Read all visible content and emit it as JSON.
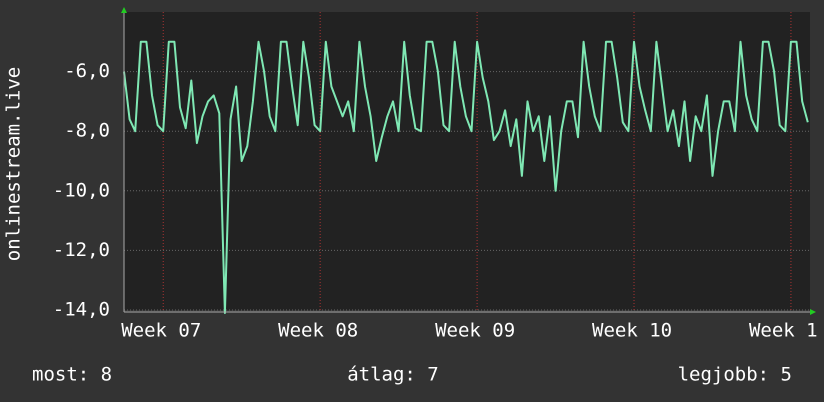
{
  "chart_data": {
    "type": "line",
    "y_label": "onlinestream.live",
    "x": [
      0,
      0.25,
      0.5,
      0.75,
      1,
      1.25,
      1.5,
      1.75,
      2,
      2.25,
      2.5,
      2.75,
      3,
      3.25,
      3.5,
      3.75,
      4,
      4.25,
      4.5,
      4.75,
      5,
      5.25,
      5.5,
      5.75,
      6,
      6.25,
      6.5,
      6.75,
      7,
      7.25,
      7.5,
      7.75,
      8,
      8.25,
      8.5,
      8.75,
      9,
      9.25,
      9.5,
      9.75,
      10,
      10.25,
      10.5,
      10.75,
      11,
      11.25,
      11.5,
      11.75,
      12,
      12.25,
      12.5,
      12.75,
      13,
      13.25,
      13.5,
      13.75,
      14,
      14.25,
      14.5,
      14.75,
      15,
      15.25,
      15.5,
      15.75,
      16,
      16.25,
      16.5,
      16.75,
      17,
      17.25,
      17.5,
      17.75,
      18,
      18.25,
      18.5,
      18.75,
      19,
      19.25,
      19.5,
      19.75,
      20,
      20.25,
      20.5,
      20.75,
      21,
      21.25,
      21.5,
      21.75,
      22,
      22.25,
      22.5,
      22.75,
      23,
      23.25,
      23.5,
      23.75,
      24,
      24.25,
      24.5,
      24.75,
      25,
      25.25,
      25.5,
      25.75,
      26,
      26.25,
      26.5,
      26.75,
      27,
      27.25,
      27.5,
      27.75,
      28,
      28.25,
      28.5,
      28.75,
      29,
      29.25,
      29.5,
      29.75,
      30,
      30.25,
      30.5
    ],
    "series": [
      {
        "color": "#7fe8b4",
        "values": [
          -6.0,
          -7.6,
          -8.0,
          -5.0,
          -5.0,
          -6.8,
          -7.8,
          -8.0,
          -5.0,
          -5.0,
          -7.2,
          -7.9,
          -6.3,
          -8.4,
          -7.5,
          -7.0,
          -6.8,
          -7.4,
          -14.1,
          -7.6,
          -6.5,
          -9.0,
          -8.5,
          -7.0,
          -5.0,
          -6.0,
          -7.5,
          -8.0,
          -5.0,
          -5.0,
          -6.5,
          -7.8,
          -5.0,
          -6.2,
          -7.8,
          -8.0,
          -5.0,
          -6.5,
          -7.0,
          -7.5,
          -7.0,
          -8.0,
          -5.0,
          -6.5,
          -7.5,
          -9.0,
          -8.2,
          -7.5,
          -7.0,
          -8.0,
          -5.0,
          -6.8,
          -7.9,
          -8.0,
          -5.0,
          -5.0,
          -6.0,
          -7.8,
          -8.0,
          -5.0,
          -6.5,
          -7.5,
          -8.0,
          -5.0,
          -6.2,
          -7.0,
          -8.3,
          -8.0,
          -7.3,
          -8.5,
          -7.6,
          -9.5,
          -7.0,
          -8.0,
          -7.5,
          -9.0,
          -7.5,
          -10.0,
          -8.0,
          -7.0,
          -7.0,
          -8.2,
          -5.0,
          -6.5,
          -7.5,
          -8.0,
          -5.0,
          -5.0,
          -6.2,
          -7.7,
          -8.0,
          -5.0,
          -6.5,
          -7.3,
          -8.0,
          -5.0,
          -6.5,
          -8.0,
          -7.3,
          -8.5,
          -7.0,
          -9.0,
          -7.5,
          -8.0,
          -6.8,
          -9.5,
          -8.0,
          -7.0,
          -7.0,
          -8.0,
          -5.0,
          -6.8,
          -7.6,
          -8.0,
          -5.0,
          -5.0,
          -6.0,
          -7.8,
          -8.0,
          -5.0,
          -5.0,
          -7.0,
          -7.7
        ]
      }
    ],
    "xlim": [
      0,
      30.6
    ],
    "xticks": [
      {
        "value": 1.75,
        "label": "Week 07"
      },
      {
        "value": 8.75,
        "label": "Week 08"
      },
      {
        "value": 15.75,
        "label": "Week 09"
      },
      {
        "value": 22.75,
        "label": "Week 10"
      },
      {
        "value": 29.75,
        "label": "Week 1"
      }
    ],
    "ylim": [
      -14,
      -4
    ],
    "yticks": [
      {
        "value": -14,
        "label": "-14,0"
      },
      {
        "value": -12,
        "label": "-12,0"
      },
      {
        "value": -10,
        "label": "-10,0"
      },
      {
        "value": -8,
        "label": "-8,0"
      },
      {
        "value": -6,
        "label": "-6,0"
      }
    ],
    "grid": true,
    "footer": [
      "most: 8",
      "átlag: 7",
      "legjobb: 5"
    ]
  }
}
